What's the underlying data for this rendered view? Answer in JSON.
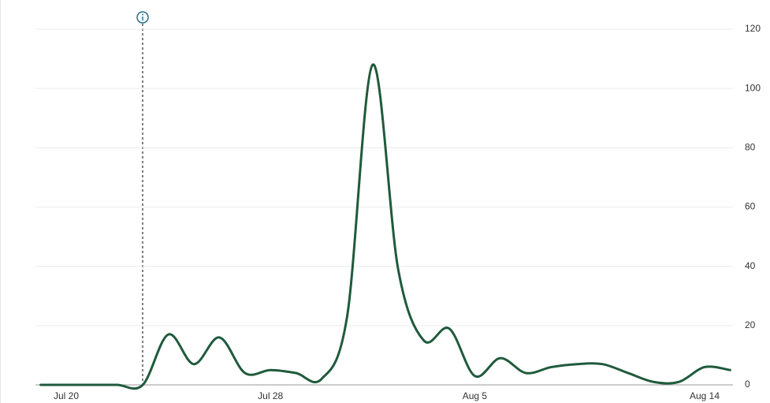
{
  "chart_data": {
    "type": "line",
    "categories": [
      null,
      "Jul 20",
      null,
      null,
      null,
      null,
      null,
      null,
      null,
      "Jul 28",
      null,
      null,
      null,
      null,
      null,
      null,
      null,
      "Aug 5",
      null,
      null,
      null,
      null,
      null,
      null,
      null,
      null,
      "Aug 14",
      null
    ],
    "series": [
      {
        "color": "#1f5a3c",
        "values": [
          0,
          0,
          0,
          0,
          0,
          17,
          7,
          16,
          4,
          5,
          4,
          2,
          23,
          108,
          39,
          15,
          19,
          3,
          9,
          4,
          6,
          7,
          7,
          4,
          1,
          1,
          6,
          5
        ]
      }
    ],
    "ylim": [
      0,
      120
    ],
    "yticks": [
      0,
      20,
      40,
      60,
      80,
      100,
      120
    ],
    "grid": true
  }
}
